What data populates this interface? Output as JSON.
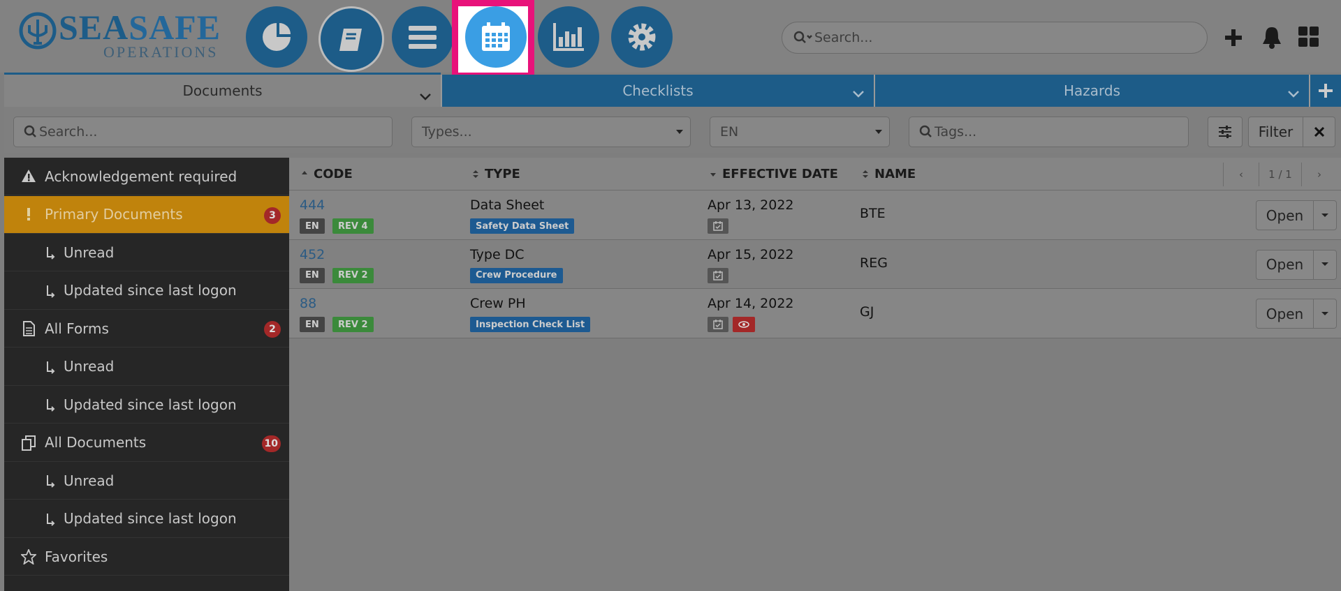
{
  "logo": {
    "brand_first": "SEA",
    "brand_second": "SAFE",
    "subtitle": "OPERATIONS"
  },
  "header_search": "Search...",
  "tabs": [
    "Documents",
    "Checklists",
    "Hazards"
  ],
  "filters": {
    "search": "Search...",
    "types": "Types...",
    "language": "EN",
    "tags": "Tags...",
    "filter_button": "Filter"
  },
  "sidebar": [
    {
      "label": "Acknowledgement required"
    },
    {
      "label": "Primary Documents",
      "badge": 3,
      "children": [
        "Unread",
        "Updated since last logon"
      ]
    },
    {
      "label": "All Forms",
      "badge": 2,
      "children": [
        "Unread",
        "Updated since last logon"
      ]
    },
    {
      "label": "All Documents",
      "badge": 10,
      "children": [
        "Unread",
        "Updated since last logon"
      ]
    },
    {
      "label": "Favorites"
    }
  ],
  "table": {
    "columns": [
      "CODE",
      "TYPE",
      "EFFECTIVE DATE",
      "NAME"
    ],
    "pagination": "1 / 1",
    "rows": [
      {
        "code": "444",
        "language": "EN",
        "revision": "REV 4",
        "type": "Data Sheet",
        "category": "Safety Data Sheet",
        "date": "Apr 13, 2022",
        "name": "BTE",
        "action": "Open"
      },
      {
        "code": "452",
        "language": "EN",
        "revision": "REV 2",
        "type": "Type DC",
        "category": "Crew Procedure",
        "date": "Apr 15, 2022",
        "name": "REG",
        "action": "Open"
      },
      {
        "code": "88",
        "language": "EN",
        "revision": "REV 2",
        "type": "Crew PH",
        "category": "Inspection Check List",
        "date": "Apr 14, 2022",
        "name": "GJ",
        "action": "Open"
      }
    ]
  }
}
